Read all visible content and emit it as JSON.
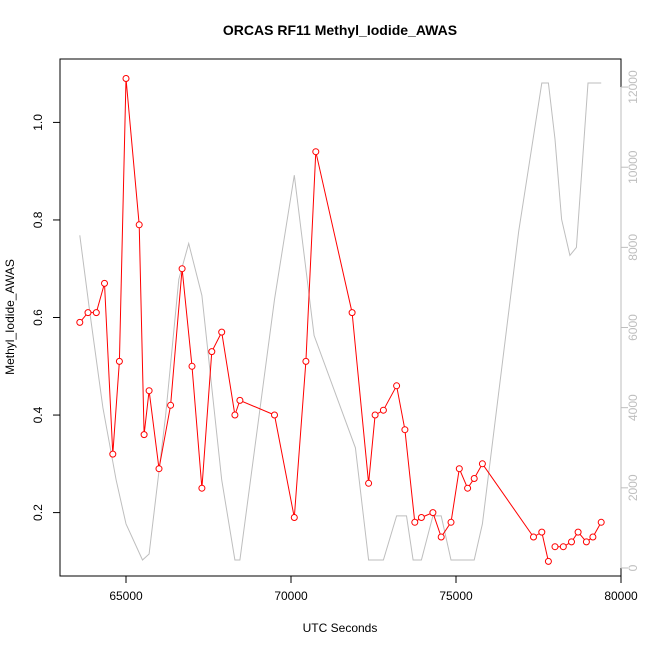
{
  "chart_data": {
    "type": "line",
    "title": "ORCAS RF11 Methyl_Iodide_AWAS",
    "xlabel": "UTC Seconds",
    "ylabel": "Methyl_Iodide_AWAS",
    "xlim": [
      63000,
      80000
    ],
    "ylim": [
      0.07,
      1.13
    ],
    "y2lim": [
      -200,
      12700
    ],
    "x_ticks": [
      65000,
      70000,
      75000,
      80000
    ],
    "y_ticks": [
      0.2,
      0.4,
      0.6,
      0.8,
      1.0
    ],
    "y2_ticks": [
      0,
      2000,
      4000,
      6000,
      8000,
      10000,
      12000
    ],
    "x_tick_labels": [
      "65000",
      "70000",
      "75000",
      "80000"
    ],
    "y_tick_labels": [
      "0.2",
      "0.4",
      "0.6",
      "0.8",
      "1.0"
    ],
    "y2_tick_labels": [
      "0",
      "2000",
      "4000",
      "6000",
      "8000",
      "10000",
      "12000"
    ],
    "grid": false,
    "series": [
      {
        "axis": "left",
        "color": "#ff0000",
        "marker": "open-circle",
        "segments": [
          [
            [
              63600,
              0.59
            ],
            [
              63850,
              0.61
            ],
            [
              64100,
              0.61
            ],
            [
              64350,
              0.67
            ],
            [
              64600,
              0.32
            ],
            [
              64800,
              0.51
            ],
            [
              65000,
              1.09
            ],
            [
              65400,
              0.79
            ],
            [
              65550,
              0.36
            ],
            [
              65700,
              0.45
            ],
            [
              66000,
              0.29
            ],
            [
              66350,
              0.42
            ],
            [
              66700,
              0.7
            ],
            [
              67000,
              0.5
            ],
            [
              67300,
              0.25
            ],
            [
              67600,
              0.53
            ],
            [
              67900,
              0.57
            ],
            [
              68300,
              0.4
            ],
            [
              68450,
              0.43
            ],
            [
              69500,
              0.4
            ],
            [
              70100,
              0.19
            ],
            [
              70450,
              0.51
            ],
            [
              70750,
              0.94
            ],
            [
              71850,
              0.61
            ],
            [
              72350,
              0.26
            ],
            [
              72550,
              0.4
            ],
            [
              72800,
              0.41
            ],
            [
              73200,
              0.46
            ],
            [
              73450,
              0.37
            ],
            [
              73750,
              0.18
            ],
            [
              73950,
              0.19
            ],
            [
              74300,
              0.2
            ],
            [
              74550,
              0.15
            ],
            [
              74850,
              0.18
            ],
            [
              75100,
              0.29
            ],
            [
              75350,
              0.25
            ],
            [
              75550,
              0.27
            ],
            [
              75800,
              0.3
            ],
            [
              77350,
              0.15
            ],
            [
              77600,
              0.16
            ],
            [
              77800,
              0.1
            ]
          ],
          [
            [
              78000,
              0.13
            ],
            [
              78250,
              0.13
            ],
            [
              78500,
              0.14
            ],
            [
              78700,
              0.16
            ],
            [
              78950,
              0.14
            ],
            [
              79150,
              0.15
            ],
            [
              79400,
              0.18
            ]
          ]
        ]
      },
      {
        "axis": "right",
        "color": "#bebebe",
        "marker": "none",
        "points": [
          [
            63600,
            8300
          ],
          [
            63900,
            6400
          ],
          [
            64300,
            4000
          ],
          [
            64700,
            2200
          ],
          [
            65000,
            1100
          ],
          [
            65500,
            200
          ],
          [
            65700,
            350
          ],
          [
            66200,
            3800
          ],
          [
            66600,
            7200
          ],
          [
            66900,
            8100
          ],
          [
            67300,
            6800
          ],
          [
            67900,
            2200
          ],
          [
            68300,
            200
          ],
          [
            68450,
            200
          ],
          [
            69500,
            6700
          ],
          [
            70100,
            9800
          ],
          [
            70700,
            5800
          ],
          [
            71950,
            3000
          ],
          [
            72350,
            200
          ],
          [
            72800,
            200
          ],
          [
            73200,
            1300
          ],
          [
            73500,
            1300
          ],
          [
            73700,
            200
          ],
          [
            73950,
            200
          ],
          [
            74300,
            1300
          ],
          [
            74550,
            1300
          ],
          [
            74850,
            200
          ],
          [
            75550,
            200
          ],
          [
            75800,
            1100
          ],
          [
            76900,
            8400
          ],
          [
            77600,
            12100
          ],
          [
            77800,
            12100
          ],
          [
            78000,
            10700
          ],
          [
            78200,
            8700
          ],
          [
            78450,
            7800
          ],
          [
            78650,
            8000
          ],
          [
            79000,
            12100
          ],
          [
            79200,
            12100
          ],
          [
            79400,
            12100
          ]
        ]
      }
    ]
  }
}
